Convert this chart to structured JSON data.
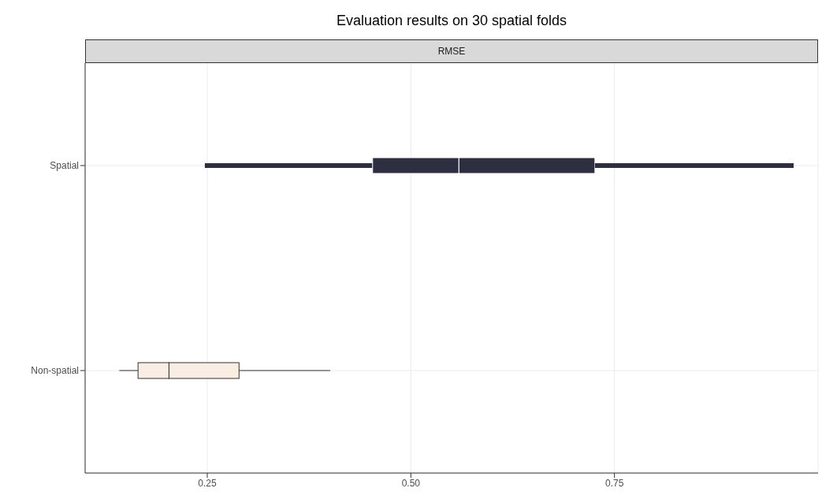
{
  "chart_data": {
    "type": "box",
    "title": "Evaluation results on 30 spatial folds",
    "subtitle": "RMSE",
    "orientation": "horizontal",
    "categories": [
      "Spatial",
      "Non-spatial"
    ],
    "boxes": [
      {
        "low": 0.247,
        "q1": 0.453,
        "median": 0.559,
        "q3": 0.726,
        "high": 0.97
      },
      {
        "low": 0.142,
        "q1": 0.165,
        "median": 0.203,
        "q3": 0.289,
        "high": 0.401
      }
    ],
    "colors": [
      "#2d2e3f",
      "#faeee2"
    ],
    "xlim": [
      0.1,
      1.0
    ],
    "xticks": [
      {
        "value": 0.25,
        "label": "0.25"
      },
      {
        "value": 0.5,
        "label": "0.50"
      },
      {
        "value": 0.75,
        "label": "0.75"
      }
    ],
    "grid": true
  }
}
